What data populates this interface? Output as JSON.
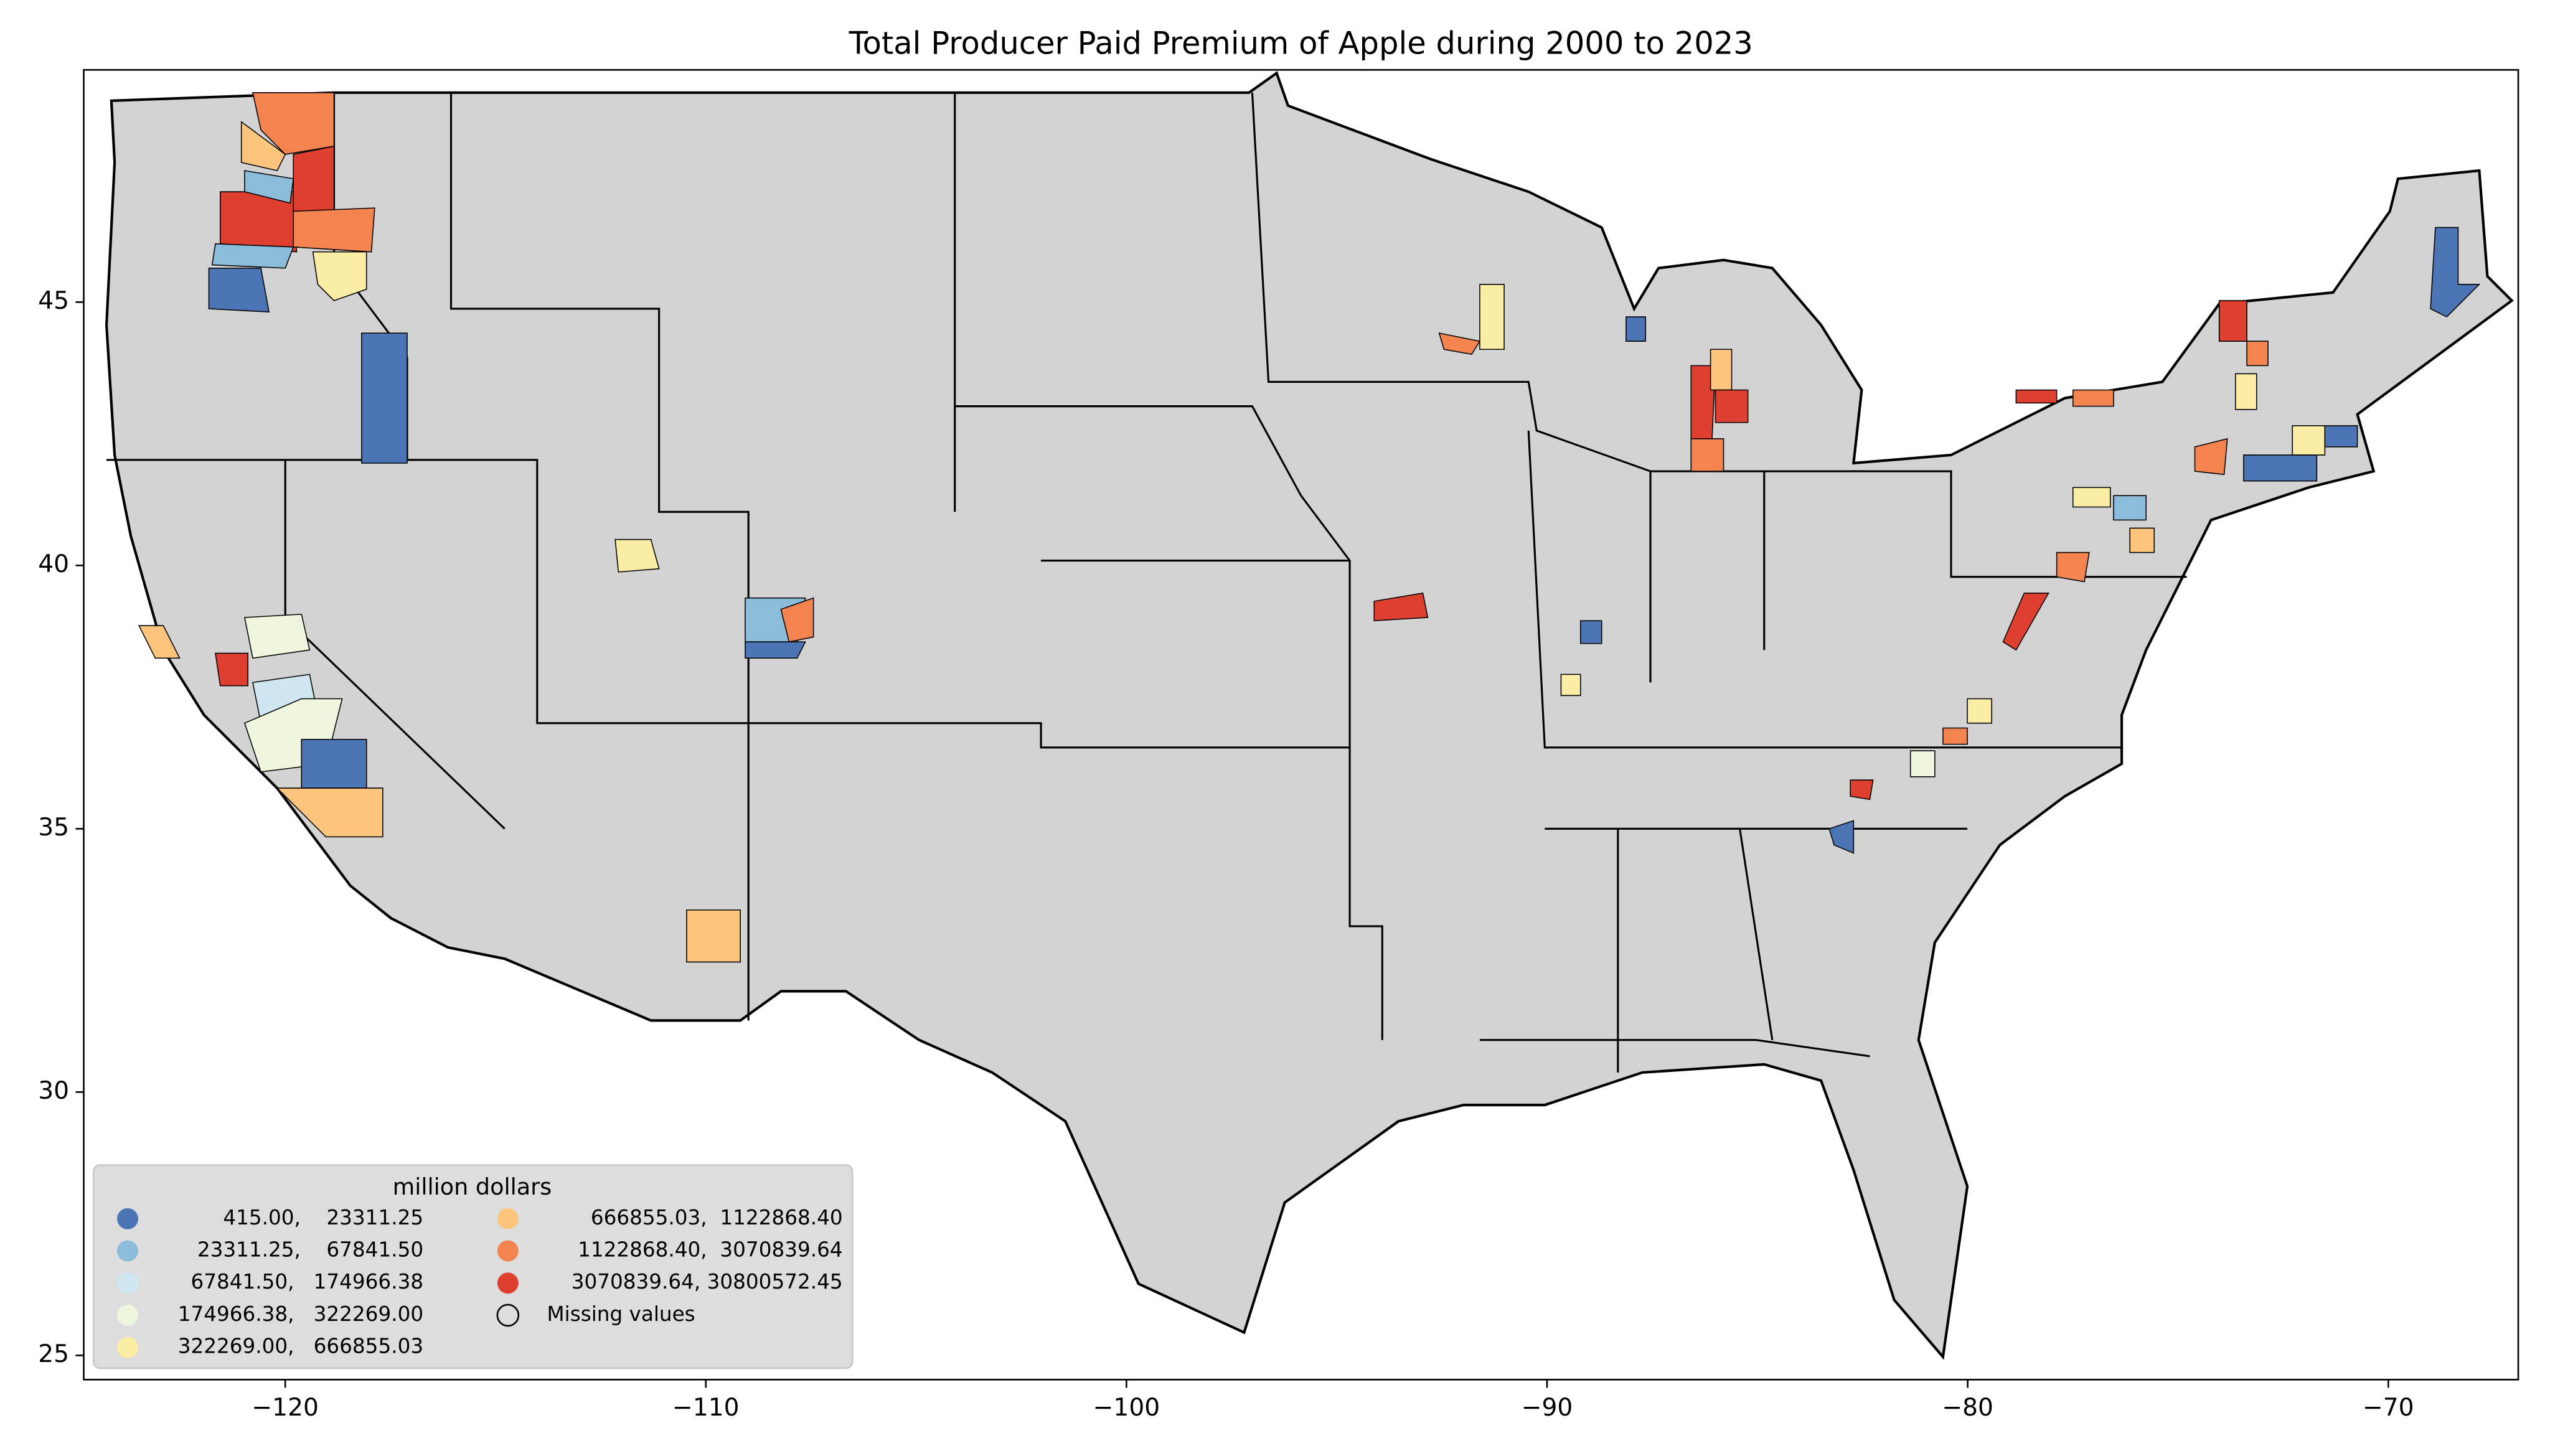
{
  "chart_data": {
    "type": "map",
    "title": "Total Producer Paid Premium of Apple during 2000 to 2023",
    "xlim": [
      -124.79,
      -66.91
    ],
    "ylim": [
      24.54,
      49.41
    ],
    "xticks": [
      {
        "value": -120,
        "label": "−120"
      },
      {
        "value": -110,
        "label": "−110"
      },
      {
        "value": -100,
        "label": "−100"
      },
      {
        "value": -90,
        "label": "−90"
      },
      {
        "value": -80,
        "label": "−80"
      },
      {
        "value": -70,
        "label": "−70"
      }
    ],
    "yticks": [
      25,
      30,
      35,
      40,
      45
    ],
    "legend": {
      "title": "million dollars",
      "loc": "lower left",
      "entries": [
        {
          "label": "415.00,    23311.25",
          "color": "#4a74b4"
        },
        {
          "label": "23311.25,    67841.50",
          "color": "#8bbcd9"
        },
        {
          "label": "67841.50,   174966.38",
          "color": "#cfe7f1"
        },
        {
          "label": "174966.38,   322269.00",
          "color": "#eef7de"
        },
        {
          "label": "322269.00,   666855.03",
          "color": "#fbeda4"
        },
        {
          "label": "666855.03,  1122868.40",
          "color": "#fdc57c"
        },
        {
          "label": "1122868.40,  3070839.64",
          "color": "#f4844f"
        },
        {
          "label": "3070839.64, 30800572.45",
          "color": "#de3f2e"
        }
      ],
      "missing_label": "Missing values"
    }
  }
}
